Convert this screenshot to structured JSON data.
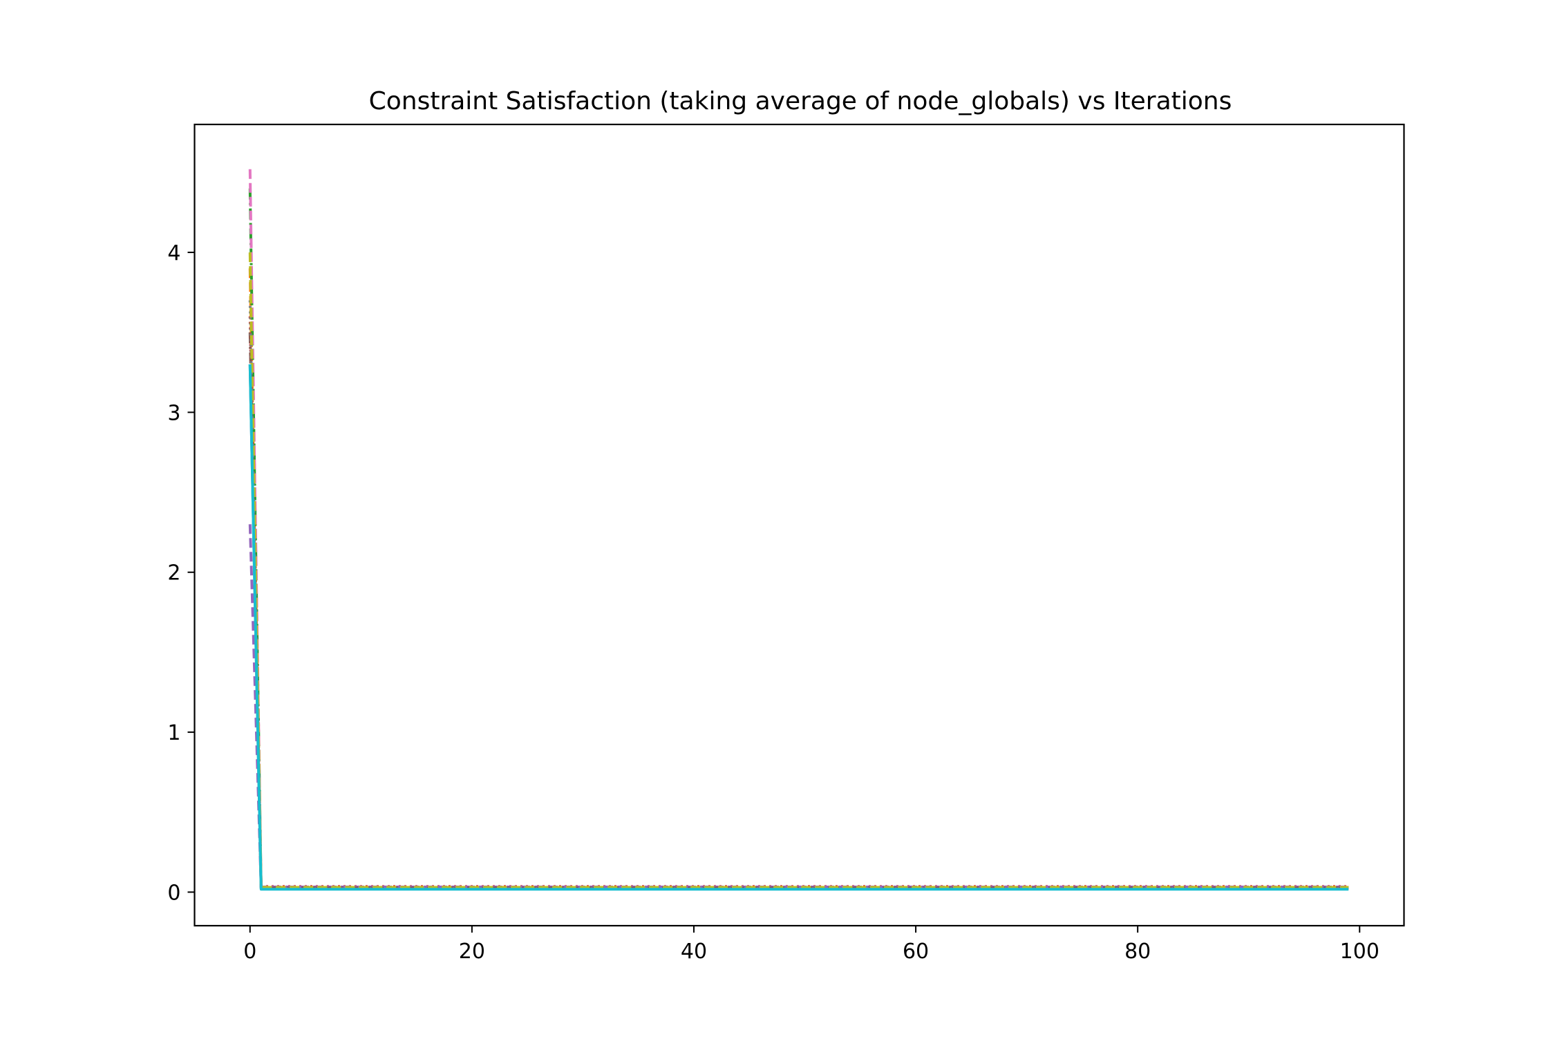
{
  "chart_data": {
    "type": "line",
    "title": "Constraint Satisfaction (taking average of node_globals) vs Iterations",
    "xlabel": "",
    "ylabel": "",
    "xlim": [
      -5,
      104
    ],
    "ylim": [
      -0.21,
      4.8
    ],
    "xticks": [
      0,
      20,
      40,
      60,
      80,
      100
    ],
    "yticks": [
      0,
      1,
      2,
      3,
      4
    ],
    "grid": false,
    "legend": "none",
    "x_last": 99,
    "series": [
      {
        "color": "#1f77b4",
        "dash": "solid",
        "start": 3.3,
        "settle": 0.025
      },
      {
        "color": "#ff7f0e",
        "dash": "dashed",
        "start": 3.9,
        "settle": 0.03
      },
      {
        "color": "#2ca02c",
        "dash": "dashdot",
        "start": 4.4,
        "settle": 0.028
      },
      {
        "color": "#d62728",
        "dash": "dotted",
        "start": 3.6,
        "settle": 0.035
      },
      {
        "color": "#9467bd",
        "dash": "dashed",
        "start": 2.3,
        "settle": 0.032
      },
      {
        "color": "#8c564b",
        "dash": "dashdot",
        "start": 3.5,
        "settle": 0.026
      },
      {
        "color": "#e377c2",
        "dash": "dashed",
        "start": 4.52,
        "settle": 0.03
      },
      {
        "color": "#7f7f7f",
        "dash": "dotted",
        "start": 3.7,
        "settle": 0.022
      },
      {
        "color": "#bcbd22",
        "dash": "dashed",
        "start": 4.0,
        "settle": 0.03
      },
      {
        "color": "#17becf",
        "dash": "solid",
        "start": 3.3,
        "settle": 0.018
      }
    ]
  }
}
